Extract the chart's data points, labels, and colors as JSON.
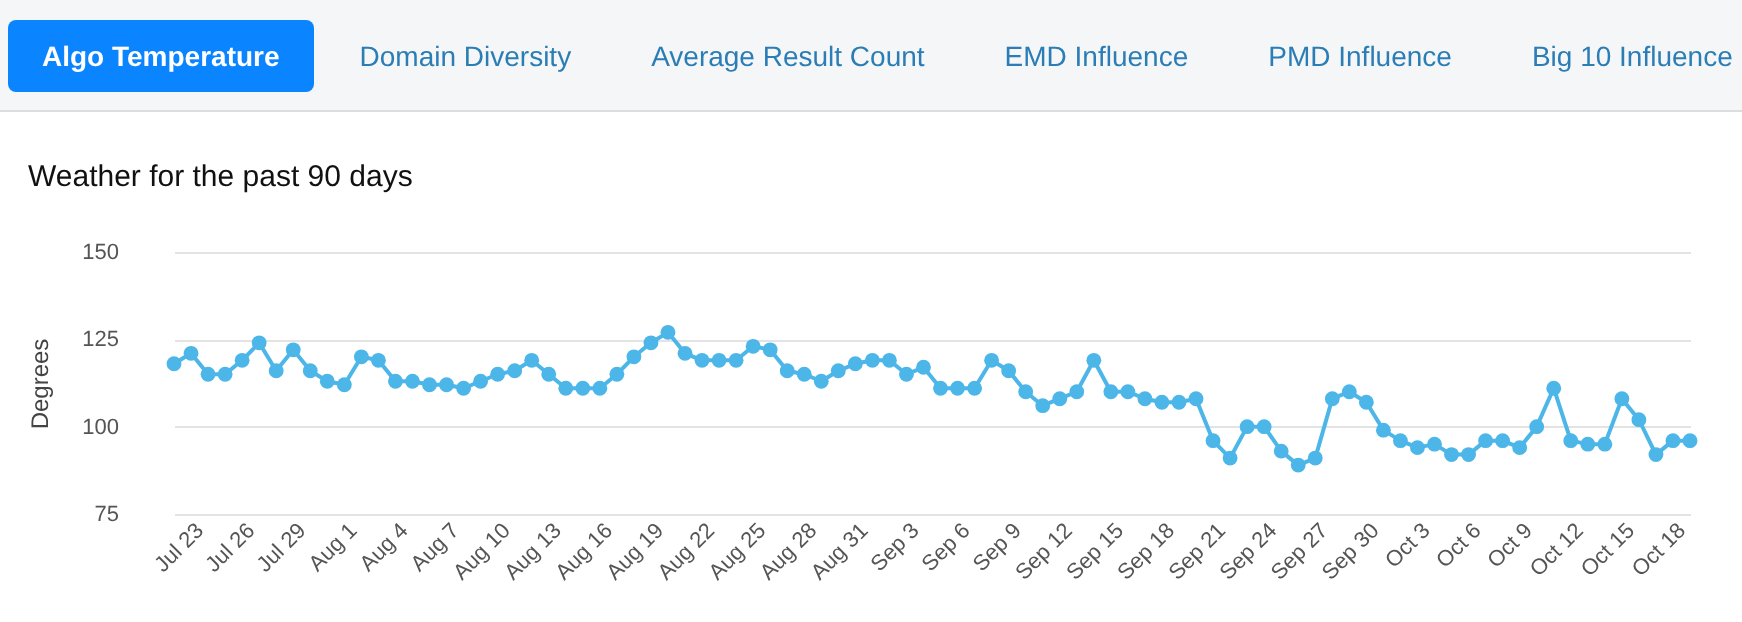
{
  "chart_data": {
    "type": "line",
    "title": "Weather for the past 90 days",
    "ylabel": "Degrees",
    "annotations": [
      "Algo Temperature",
      "Domain Diversity",
      "Average Result Count",
      "EMD Influence",
      "PMD Influence",
      "Big 10 Influence"
    ],
    "x": [
      "--07-22",
      "--07-23",
      "--07-24",
      "--07-25",
      "--07-26",
      "--07-27",
      "--07-28",
      "--07-29",
      "--07-30",
      "--07-31",
      "--08-01",
      "--08-02",
      "--08-03",
      "--08-04",
      "--08-05",
      "--08-06",
      "--08-07",
      "--08-08",
      "--08-09",
      "--08-10",
      "--08-11",
      "--08-12",
      "--08-13",
      "--08-14",
      "--08-15",
      "--08-16",
      "--08-17",
      "--08-18",
      "--08-19",
      "--08-20",
      "--08-21",
      "--08-22",
      "--08-23",
      "--08-24",
      "--08-25",
      "--08-26",
      "--08-27",
      "--08-28",
      "--08-29",
      "--08-30",
      "--08-31",
      "--09-01",
      "--09-02",
      "--09-03",
      "--09-04",
      "--09-05",
      "--09-06",
      "--09-07",
      "--09-08",
      "--09-09",
      "--09-10",
      "--09-11",
      "--09-12",
      "--09-13",
      "--09-14",
      "--09-15",
      "--09-16",
      "--09-17",
      "--09-18",
      "--09-19",
      "--09-20",
      "--09-21",
      "--09-22",
      "--09-23",
      "--09-24",
      "--09-25",
      "--09-26",
      "--09-27",
      "--09-28",
      "--09-29",
      "--09-30",
      "--10-01",
      "--10-02",
      "--10-03",
      "--10-04",
      "--10-05",
      "--10-06",
      "--10-07",
      "--10-08",
      "--10-09",
      "--10-10",
      "--10-11",
      "--10-12",
      "--10-13",
      "--10-14",
      "--10-15",
      "--10-16",
      "--10-17",
      "--10-18",
      "--10-19"
    ],
    "xlim": [
      "--07-22",
      "--10-19"
    ],
    "xticks": [
      {
        "value": "--07-23",
        "label": "Jul 23"
      },
      {
        "value": "--07-26",
        "label": "Jul 26"
      },
      {
        "value": "--07-29",
        "label": "Jul 29"
      },
      {
        "value": "--08-01",
        "label": "Aug 1"
      },
      {
        "value": "--08-04",
        "label": "Aug 4"
      },
      {
        "value": "--08-07",
        "label": "Aug 7"
      },
      {
        "value": "--08-10",
        "label": "Aug 10"
      },
      {
        "value": "--08-13",
        "label": "Aug 13"
      },
      {
        "value": "--08-16",
        "label": "Aug 16"
      },
      {
        "value": "--08-19",
        "label": "Aug 19"
      },
      {
        "value": "--08-22",
        "label": "Aug 22"
      },
      {
        "value": "--08-25",
        "label": "Aug 25"
      },
      {
        "value": "--08-28",
        "label": "Aug 28"
      },
      {
        "value": "--08-31",
        "label": "Aug 31"
      },
      {
        "value": "--09-03",
        "label": "Sep 3"
      },
      {
        "value": "--09-06",
        "label": "Sep 6"
      },
      {
        "value": "--09-09",
        "label": "Sep 9"
      },
      {
        "value": "--09-12",
        "label": "Sep 12"
      },
      {
        "value": "--09-15",
        "label": "Sep 15"
      },
      {
        "value": "--09-18",
        "label": "Sep 18"
      },
      {
        "value": "--09-21",
        "label": "Sep 21"
      },
      {
        "value": "--09-24",
        "label": "Sep 24"
      },
      {
        "value": "--09-27",
        "label": "Sep 27"
      },
      {
        "value": "--09-30",
        "label": "Sep 30"
      },
      {
        "value": "--10-03",
        "label": "Oct 3"
      },
      {
        "value": "--10-06",
        "label": "Oct 6"
      },
      {
        "value": "--10-09",
        "label": "Oct 9"
      },
      {
        "value": "--10-12",
        "label": "Oct 12"
      },
      {
        "value": "--10-15",
        "label": "Oct 15"
      },
      {
        "value": "--10-18",
        "label": "Oct 18"
      }
    ],
    "series": [
      {
        "color": "#4db6e8",
        "values": [
          118,
          121,
          115,
          115,
          119,
          124,
          116,
          122,
          116,
          113,
          112,
          120,
          119,
          113,
          113,
          112,
          112,
          111,
          113,
          115,
          116,
          119,
          115,
          111,
          111,
          111,
          115,
          120,
          124,
          127,
          121,
          119,
          119,
          119,
          123,
          122,
          116,
          115,
          113,
          116,
          118,
          119,
          119,
          115,
          117,
          111,
          111,
          111,
          119,
          116,
          110,
          106,
          108,
          110,
          119,
          110,
          110,
          108,
          107,
          107,
          108,
          96,
          91,
          100,
          100,
          93,
          89,
          91,
          108,
          110,
          107,
          99,
          96,
          94,
          95,
          92,
          92,
          96,
          96,
          94,
          100,
          111,
          96,
          95,
          95,
          108,
          102,
          92,
          96,
          96
        ]
      }
    ],
    "ylim": [
      75,
      150
    ],
    "yticks": [
      75,
      100,
      125,
      150
    ],
    "grid": "y",
    "marker": "circle",
    "legend": false
  }
}
